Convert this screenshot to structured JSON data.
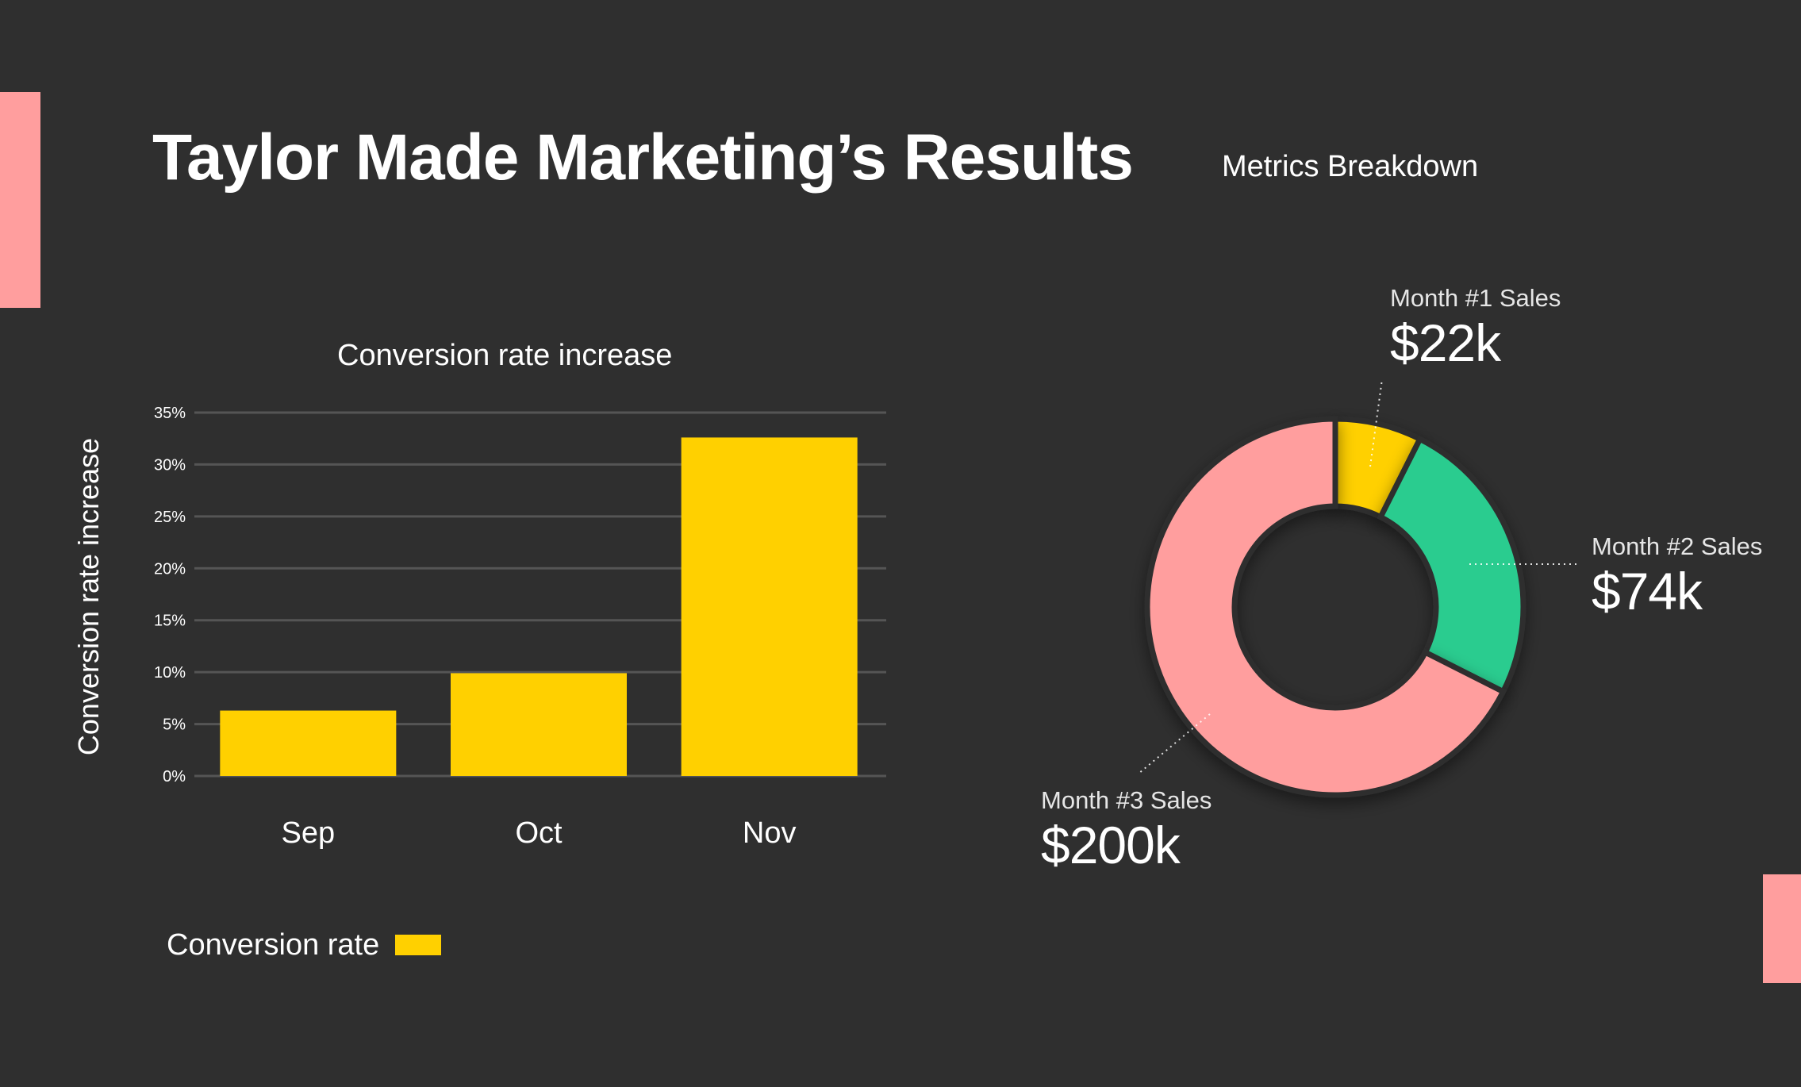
{
  "title": "Taylor Made Marketing’s Results",
  "metrics_title": "Metrics Breakdown",
  "colors": {
    "background": "#2f2f2f",
    "accent": "#ff9e9e",
    "bar": "#ffd000",
    "green": "#2bcc8f",
    "yellow": "#ffd000",
    "pink": "#ff9e9e",
    "grid": "#555555"
  },
  "legend": {
    "label": "Conversion rate"
  },
  "callouts": {
    "m1": {
      "label": "Month #1 Sales",
      "value": "$22k"
    },
    "m2": {
      "label": "Month #2 Sales",
      "value": "$74k"
    },
    "m3": {
      "label": "Month #3 Sales",
      "value": "$200k"
    }
  },
  "chart_data": [
    {
      "type": "bar",
      "title": "Conversion rate increase",
      "xlabel": "",
      "ylabel": "Conversion rate increase",
      "categories": [
        "Sep",
        "Oct",
        "Nov"
      ],
      "series": [
        {
          "name": "Conversion rate",
          "values": [
            6.3,
            9.9,
            32.6
          ]
        }
      ],
      "ylim": [
        0,
        35
      ],
      "yticks": [
        "0%",
        "5%",
        "10%",
        "15%",
        "20%",
        "25%",
        "30%",
        "35%"
      ],
      "grid": true,
      "legend": "bottom-left"
    },
    {
      "type": "pie",
      "donut": true,
      "labels": [
        "Month #1 Sales",
        "Month #2 Sales",
        "Month #3 Sales"
      ],
      "values": [
        22,
        74,
        200
      ],
      "value_labels": [
        "$22k",
        "$74k",
        "$200k"
      ],
      "colors": [
        "#ffd000",
        "#2bcc8f",
        "#ff9e9e"
      ]
    }
  ]
}
